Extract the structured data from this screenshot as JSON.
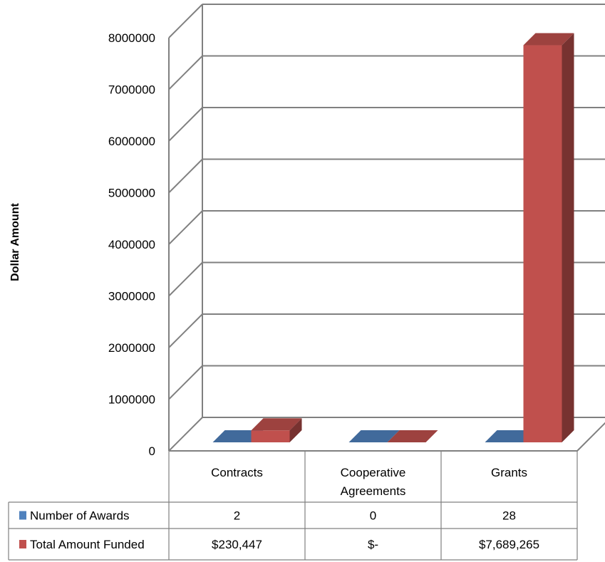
{
  "chart_data": {
    "type": "bar",
    "ylabel": "Dollar Amount",
    "xlabel": "",
    "ylim": [
      0,
      8000000
    ],
    "yticks": [
      "0",
      "1000000",
      "2000000",
      "3000000",
      "4000000",
      "5000000",
      "6000000",
      "7000000",
      "8000000"
    ],
    "categories": [
      {
        "lines": [
          "Contracts"
        ]
      },
      {
        "lines": [
          "Cooperative",
          "Agreements"
        ]
      },
      {
        "lines": [
          "Grants"
        ]
      }
    ],
    "series": [
      {
        "name": "Number of Awards",
        "values": [
          2,
          0,
          28
        ],
        "labels": [
          "2",
          "0",
          "28"
        ],
        "color": "#4F81BD"
      },
      {
        "name": "Total Amount Funded",
        "values": [
          230447,
          0,
          7689265
        ],
        "labels": [
          "$230,447",
          "$-",
          "$7,689,265"
        ],
        "color": "#C0504D"
      }
    ],
    "grid": true,
    "legend": "data-table"
  }
}
